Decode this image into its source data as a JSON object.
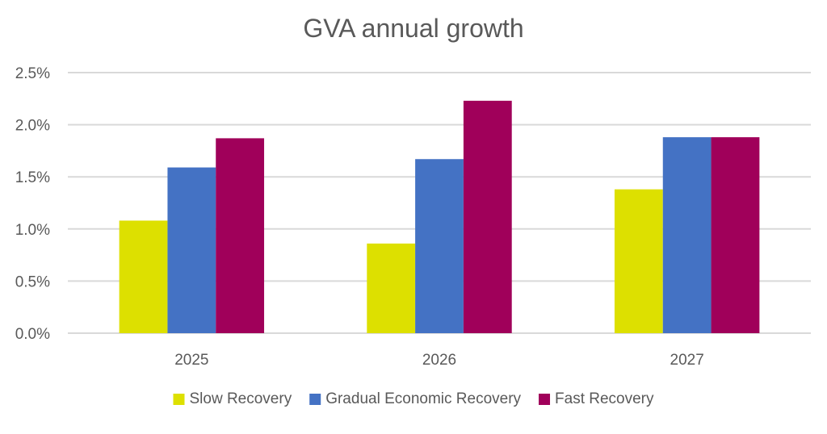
{
  "chart_data": {
    "type": "bar",
    "title": "GVA annual growth",
    "xlabel": "",
    "ylabel": "",
    "categories": [
      "2025",
      "2026",
      "2027"
    ],
    "ylim": [
      0,
      0.025
    ],
    "yticks": [
      {
        "value": 0.0,
        "label": "0.0%"
      },
      {
        "value": 0.005,
        "label": "0.5%"
      },
      {
        "value": 0.01,
        "label": "1.0%"
      },
      {
        "value": 0.015,
        "label": "1.5%"
      },
      {
        "value": 0.02,
        "label": "2.0%"
      },
      {
        "value": 0.025,
        "label": "2.5%"
      }
    ],
    "grid": true,
    "legend_position": "bottom",
    "series": [
      {
        "name": "Slow Recovery",
        "color": "#dde000",
        "values": [
          0.0108,
          0.0086,
          0.0138
        ]
      },
      {
        "name": "Gradual Economic Recovery",
        "color": "#4472c4",
        "values": [
          0.0159,
          0.0167,
          0.0188
        ]
      },
      {
        "name": "Fast Recovery",
        "color": "#a0005a",
        "values": [
          0.0187,
          0.0223,
          0.0188
        ]
      }
    ]
  }
}
